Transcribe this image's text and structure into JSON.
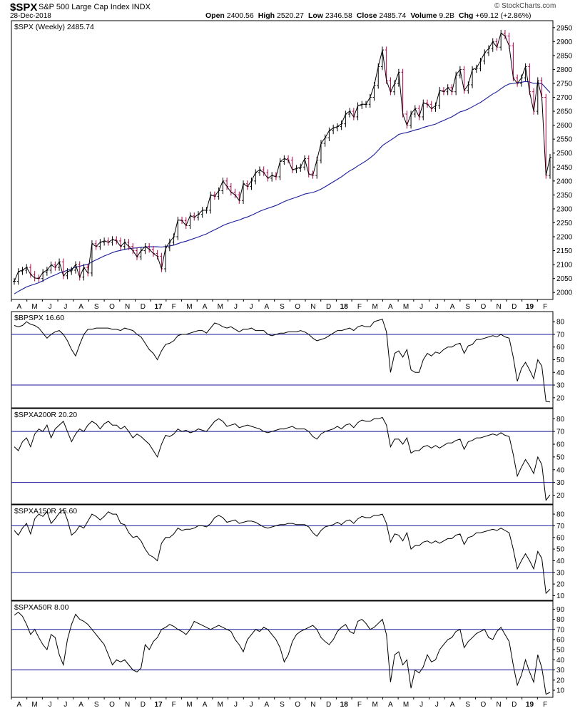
{
  "header": {
    "ticker": "$SPX",
    "name": "S&P 500 Large Cap Index INDX",
    "date": "28-Dec-2018",
    "watermark": "© StockCharts.com",
    "ohlc": [
      {
        "label": "Open",
        "value": "2400.56"
      },
      {
        "label": "High",
        "value": "2520.27"
      },
      {
        "label": "Low",
        "value": "2346.58"
      },
      {
        "label": "Close",
        "value": "2485.74"
      },
      {
        "label": "Volume",
        "value": "9.2B"
      },
      {
        "label": "Chg",
        "value": "+69.12 (+2.86%)"
      }
    ]
  },
  "colors": {
    "price": "#000000",
    "down_bar": "#b0004a",
    "ma": "#1a1a9a",
    "ref_line": "#1a1a9a",
    "indicator": "#000000"
  },
  "chart_data": [
    {
      "type": "line",
      "subtype": "weekly-ohlc-with-moving-average",
      "legend": "$SPX (Weekly) 2485.74",
      "x_labels": [
        "A",
        "M",
        "J",
        "J",
        "A",
        "S",
        "O",
        "N",
        "D",
        "17",
        "F",
        "M",
        "A",
        "M",
        "J",
        "J",
        "A",
        "S",
        "O",
        "N",
        "D",
        "18",
        "F",
        "M",
        "A",
        "M",
        "J",
        "J",
        "A",
        "S",
        "O",
        "N",
        "D",
        "19",
        "F"
      ],
      "ylim": [
        1975,
        2975
      ],
      "y_ticks": [
        2000,
        2050,
        2100,
        2150,
        2200,
        2250,
        2300,
        2350,
        2400,
        2450,
        2500,
        2550,
        2600,
        2650,
        2700,
        2750,
        2800,
        2850,
        2900,
        2950
      ],
      "close": [
        2040,
        2075,
        2080,
        2090,
        2065,
        2052,
        2050,
        2072,
        2080,
        2099,
        2090,
        2110,
        2060,
        2075,
        2080,
        2100,
        2055,
        2090,
        2070,
        2175,
        2165,
        2180,
        2185,
        2180,
        2190,
        2185,
        2165,
        2180,
        2165,
        2150,
        2128,
        2150,
        2165,
        2155,
        2140,
        2130,
        2085,
        2160,
        2181,
        2200,
        2260,
        2258,
        2240,
        2275,
        2270,
        2280,
        2295,
        2295,
        2350,
        2345,
        2365,
        2400,
        2380,
        2360,
        2350,
        2330,
        2390,
        2380,
        2400,
        2430,
        2440,
        2430,
        2410,
        2420,
        2415,
        2470,
        2480,
        2475,
        2440,
        2445,
        2450,
        2480,
        2425,
        2420,
        2475,
        2535,
        2555,
        2580,
        2590,
        2595,
        2605,
        2640,
        2650,
        2630,
        2670,
        2675,
        2675,
        2700,
        2743,
        2810,
        2870,
        2760,
        2720,
        2750,
        2790,
        2640,
        2600,
        2640,
        2660,
        2630,
        2680,
        2675,
        2660,
        2670,
        2725,
        2720,
        2735,
        2720,
        2780,
        2800,
        2725,
        2745,
        2800,
        2805,
        2830,
        2860,
        2875,
        2900,
        2880,
        2930,
        2920,
        2885,
        2770,
        2750,
        2770,
        2810,
        2720,
        2650,
        2760,
        2700,
        2420,
        2485
      ],
      "ma": [
        1995,
        2004,
        2012,
        2020,
        2025,
        2030,
        2035,
        2042,
        2050,
        2057,
        2063,
        2070,
        2074,
        2080,
        2085,
        2091,
        2094,
        2098,
        2101,
        2110,
        2117,
        2124,
        2131,
        2137,
        2143,
        2148,
        2151,
        2155,
        2157,
        2159,
        2160,
        2162,
        2163,
        2164,
        2164,
        2164,
        2163,
        2165,
        2167,
        2170,
        2175,
        2180,
        2184,
        2189,
        2194,
        2199,
        2205,
        2210,
        2218,
        2225,
        2232,
        2240,
        2246,
        2251,
        2256,
        2260,
        2266,
        2271,
        2277,
        2284,
        2291,
        2297,
        2302,
        2307,
        2312,
        2319,
        2326,
        2332,
        2337,
        2342,
        2347,
        2353,
        2356,
        2359,
        2364,
        2371,
        2379,
        2388,
        2397,
        2406,
        2415,
        2426,
        2436,
        2444,
        2454,
        2463,
        2472,
        2483,
        2495,
        2510,
        2527,
        2537,
        2546,
        2556,
        2567,
        2571,
        2574,
        2578,
        2583,
        2586,
        2592,
        2596,
        2600,
        2604,
        2611,
        2617,
        2624,
        2630,
        2639,
        2648,
        2652,
        2658,
        2666,
        2674,
        2682,
        2692,
        2702,
        2712,
        2720,
        2731,
        2741,
        2748,
        2750,
        2752,
        2754,
        2757,
        2755,
        2750,
        2751,
        2749,
        2733,
        2717
      ]
    },
    {
      "type": "line",
      "legend": "$BPSPX 16.60",
      "ylim": [
        12,
        88
      ],
      "y_ticks": [
        20,
        30,
        40,
        50,
        60,
        70,
        80
      ],
      "ref_lines": [
        30,
        70
      ],
      "values": [
        77,
        76,
        77,
        80,
        78,
        77,
        75,
        71,
        67,
        70,
        72,
        73,
        70,
        65,
        58,
        53,
        62,
        70,
        74,
        74,
        75,
        75,
        75,
        75,
        74,
        74,
        73,
        75,
        74,
        73,
        70,
        68,
        63,
        58,
        55,
        50,
        57,
        62,
        63,
        65,
        69,
        70,
        70,
        71,
        72,
        73,
        73,
        71,
        75,
        79,
        78,
        76,
        75,
        76,
        74,
        72,
        74,
        74,
        75,
        73,
        73,
        73,
        70,
        69,
        70,
        71,
        71,
        72,
        72,
        72,
        73,
        72,
        70,
        67,
        65,
        66,
        67,
        69,
        71,
        73,
        73,
        74,
        75,
        73,
        76,
        77,
        76,
        76,
        80,
        81,
        82,
        72,
        40,
        55,
        57,
        52,
        58,
        42,
        40,
        40,
        50,
        55,
        53,
        56,
        55,
        58,
        60,
        60,
        62,
        63,
        55,
        61,
        62,
        66,
        66,
        67,
        68,
        69,
        68,
        70,
        68,
        67,
        52,
        33,
        43,
        48,
        42,
        35,
        50,
        45,
        17,
        16.6
      ]
    },
    {
      "type": "line",
      "legend": "$SPXA200R 20.20",
      "ylim": [
        13,
        88
      ],
      "y_ticks": [
        20,
        30,
        40,
        50,
        60,
        70,
        80
      ],
      "ref_lines": [
        30,
        70
      ],
      "values": [
        58,
        55,
        62,
        65,
        58,
        68,
        72,
        70,
        75,
        65,
        72,
        75,
        78,
        70,
        62,
        68,
        72,
        70,
        75,
        78,
        76,
        72,
        76,
        78,
        75,
        75,
        72,
        74,
        70,
        65,
        68,
        66,
        63,
        60,
        55,
        50,
        60,
        67,
        66,
        68,
        72,
        70,
        71,
        69,
        70,
        72,
        71,
        70,
        74,
        78,
        80,
        78,
        74,
        75,
        76,
        73,
        74,
        75,
        74,
        73,
        72,
        70,
        69,
        70,
        71,
        72,
        72,
        73,
        74,
        72,
        72,
        72,
        70,
        66,
        64,
        68,
        70,
        71,
        72,
        74,
        72,
        75,
        76,
        73,
        77,
        79,
        78,
        78,
        80,
        80,
        81,
        75,
        58,
        64,
        64,
        60,
        65,
        53,
        55,
        55,
        58,
        59,
        57,
        59,
        57,
        59,
        61,
        61,
        63,
        64,
        56,
        62,
        63,
        65,
        65,
        66,
        67,
        68,
        67,
        69,
        67,
        66,
        52,
        35,
        42,
        48,
        43,
        37,
        50,
        44,
        16,
        20.2
      ]
    },
    {
      "type": "line",
      "legend": "$SPXA150R 15.60",
      "ylim": [
        6,
        88
      ],
      "y_ticks": [
        10,
        20,
        30,
        40,
        50,
        60,
        70,
        80
      ],
      "ref_lines": [
        30,
        70
      ],
      "values": [
        66,
        62,
        68,
        72,
        63,
        76,
        80,
        78,
        82,
        72,
        76,
        81,
        84,
        75,
        62,
        65,
        70,
        68,
        74,
        80,
        78,
        75,
        78,
        82,
        80,
        80,
        72,
        71,
        64,
        60,
        61,
        57,
        50,
        45,
        43,
        40,
        55,
        60,
        60,
        63,
        68,
        66,
        67,
        67,
        68,
        70,
        70,
        69,
        72,
        77,
        79,
        77,
        73,
        74,
        75,
        72,
        73,
        74,
        74,
        73,
        71,
        69,
        68,
        69,
        70,
        71,
        71,
        72,
        72,
        71,
        71,
        71,
        69,
        64,
        61,
        66,
        69,
        70,
        71,
        73,
        71,
        74,
        75,
        72,
        76,
        78,
        77,
        77,
        79,
        79,
        80,
        72,
        56,
        63,
        62,
        57,
        64,
        50,
        53,
        53,
        56,
        57,
        55,
        57,
        55,
        57,
        59,
        59,
        62,
        63,
        54,
        60,
        61,
        64,
        64,
        65,
        66,
        67,
        66,
        68,
        66,
        64,
        50,
        33,
        40,
        46,
        40,
        33,
        48,
        42,
        12,
        15.6
      ]
    },
    {
      "type": "line",
      "legend": "$SPXA50R 8.00",
      "ylim": [
        3,
        98
      ],
      "y_ticks": [
        10,
        20,
        30,
        40,
        50,
        60,
        70,
        80,
        90
      ],
      "ref_lines": [
        30,
        70
      ],
      "values": [
        84,
        87,
        83,
        75,
        65,
        70,
        62,
        55,
        50,
        65,
        62,
        45,
        35,
        60,
        75,
        85,
        80,
        78,
        75,
        70,
        65,
        60,
        55,
        45,
        35,
        40,
        38,
        40,
        35,
        30,
        28,
        32,
        55,
        50,
        58,
        62,
        70,
        72,
        75,
        73,
        70,
        68,
        65,
        70,
        78,
        76,
        74,
        72,
        70,
        72,
        74,
        72,
        70,
        68,
        60,
        55,
        48,
        60,
        65,
        70,
        68,
        72,
        70,
        65,
        60,
        52,
        38,
        45,
        58,
        65,
        68,
        70,
        72,
        74,
        70,
        62,
        58,
        55,
        60,
        68,
        72,
        75,
        68,
        66,
        78,
        80,
        76,
        70,
        72,
        76,
        80,
        65,
        18,
        45,
        48,
        35,
        40,
        12,
        30,
        27,
        33,
        45,
        38,
        40,
        50,
        55,
        60,
        62,
        68,
        70,
        52,
        58,
        62,
        66,
        68,
        70,
        62,
        60,
        68,
        72,
        65,
        58,
        35,
        15,
        25,
        40,
        28,
        18,
        45,
        32,
        6,
        8
      ]
    }
  ]
}
